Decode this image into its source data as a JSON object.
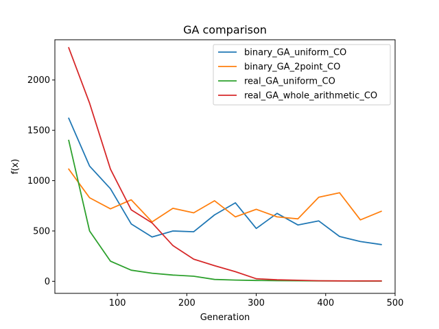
{
  "chart_data": {
    "type": "line",
    "title": "GA comparison",
    "xlabel": "Generation",
    "ylabel": "f(x)",
    "xlim": [
      10,
      500
    ],
    "ylim": [
      -120,
      2400
    ],
    "xticks": [
      100,
      200,
      300,
      400,
      500
    ],
    "yticks": [
      0,
      500,
      1000,
      1500,
      2000
    ],
    "grid": false,
    "legend_position": "top-right",
    "series": [
      {
        "name": "binary_GA_uniform_CO",
        "color": "#1f77b4",
        "x": [
          30,
          60,
          90,
          120,
          150,
          180,
          210,
          240,
          270,
          300,
          330,
          360,
          390,
          420,
          450,
          480
        ],
        "y": [
          1620,
          1145,
          920,
          570,
          440,
          500,
          492,
          660,
          780,
          525,
          675,
          560,
          600,
          445,
          395,
          365
        ]
      },
      {
        "name": "binary_GA_2point_CO",
        "color": "#ff7f0e",
        "x": [
          30,
          60,
          90,
          120,
          150,
          180,
          210,
          240,
          270,
          300,
          330,
          360,
          390,
          420,
          450,
          480
        ],
        "y": [
          1115,
          830,
          720,
          810,
          590,
          725,
          680,
          800,
          640,
          715,
          640,
          620,
          835,
          880,
          610,
          695
        ]
      },
      {
        "name": "real_GA_uniform_CO",
        "color": "#2ca02c",
        "x": [
          30,
          60,
          90,
          120,
          150,
          180,
          210,
          240,
          270,
          300,
          330,
          360,
          390,
          420,
          450,
          480
        ],
        "y": [
          1400,
          500,
          200,
          110,
          80,
          62,
          50,
          18,
          12,
          8,
          6,
          5,
          4,
          3,
          2,
          2
        ]
      },
      {
        "name": "real_GA_whole_arithmetic_CO",
        "color": "#d62728",
        "x": [
          30,
          60,
          90,
          120,
          150,
          180,
          210,
          240,
          270,
          300,
          330,
          360,
          390,
          420,
          450,
          480
        ],
        "y": [
          2320,
          1770,
          1115,
          710,
          580,
          355,
          220,
          155,
          95,
          25,
          15,
          10,
          5,
          4,
          3,
          3
        ]
      }
    ]
  }
}
